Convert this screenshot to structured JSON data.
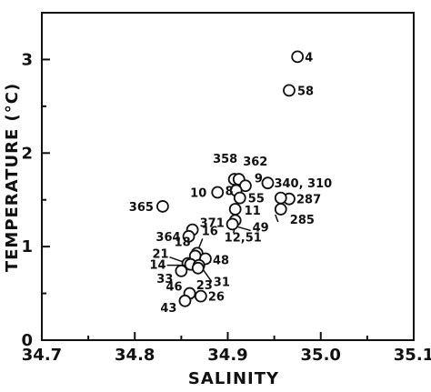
{
  "chart_data": {
    "type": "scatter",
    "xlabel": "SALINITY",
    "ylabel": "TEMPERATURE (°C)",
    "xlim": [
      34.7,
      35.1
    ],
    "ylim": [
      0,
      3.5
    ],
    "xticks": [
      "34.7",
      "34.8",
      "34.9",
      "35.0",
      "35.1"
    ],
    "yticks": [
      "0",
      "1",
      "2",
      "3"
    ],
    "grid": false,
    "points": [
      {
        "label": "4",
        "x": 34.975,
        "y": 3.03
      },
      {
        "label": "58",
        "x": 34.966,
        "y": 2.67
      },
      {
        "label": "358",
        "x": 34.907,
        "y": 1.72
      },
      {
        "label": "362",
        "x": 34.912,
        "y": 1.72
      },
      {
        "label": "9",
        "x": 34.919,
        "y": 1.65
      },
      {
        "label": "10",
        "x": 34.889,
        "y": 1.58
      },
      {
        "label": "8",
        "x": 34.909,
        "y": 1.6
      },
      {
        "label": "55",
        "x": 34.913,
        "y": 1.52
      },
      {
        "label": "11",
        "x": 34.908,
        "y": 1.4
      },
      {
        "label": "340, 310",
        "x": 34.943,
        "y": 1.68
      },
      {
        "label": "287",
        "x": 34.966,
        "y": 1.51
      },
      {
        "label": "",
        "x": 34.957,
        "y": 1.52
      },
      {
        "label": "285",
        "x": 34.957,
        "y": 1.4
      },
      {
        "label": "365",
        "x": 34.83,
        "y": 1.43
      },
      {
        "label": "12,51",
        "x": 34.908,
        "y": 1.28
      },
      {
        "label": "49",
        "x": 34.905,
        "y": 1.24
      },
      {
        "label": "371",
        "x": 34.862,
        "y": 1.18
      },
      {
        "label": "364",
        "x": 34.858,
        "y": 1.11
      },
      {
        "label": "16",
        "x": 34.867,
        "y": 0.93
      },
      {
        "label": "18",
        "x": 34.865,
        "y": 0.9
      },
      {
        "label": "48",
        "x": 34.876,
        "y": 0.87
      },
      {
        "label": "21",
        "x": 34.857,
        "y": 0.82
      },
      {
        "label": "14",
        "x": 34.86,
        "y": 0.81
      },
      {
        "label": "31",
        "x": 34.869,
        "y": 0.8
      },
      {
        "label": "23",
        "x": 34.868,
        "y": 0.77
      },
      {
        "label": "33",
        "x": 34.85,
        "y": 0.74
      },
      {
        "label": "46",
        "x": 34.859,
        "y": 0.5
      },
      {
        "label": "26",
        "x": 34.871,
        "y": 0.47
      },
      {
        "label": "43",
        "x": 34.854,
        "y": 0.42
      }
    ]
  }
}
